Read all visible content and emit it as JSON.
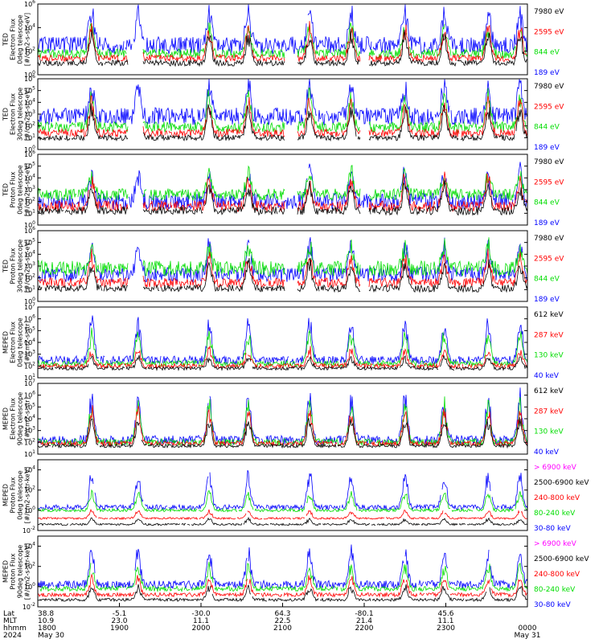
{
  "chart_data": [
    {
      "type": "line",
      "ylabel": [
        "TED",
        "Electron Flux",
        "0deg telescope",
        "[#/cm2-s-str-eV]"
      ],
      "yscale": "log",
      "ylim": [
        1,
        1000000
      ],
      "yticks": [
        {
          "exp": "0"
        },
        {
          "exp": "2"
        },
        {
          "exp": "4"
        },
        {
          "exp": "6"
        }
      ],
      "legend": [
        {
          "label": "7980 eV",
          "color": "#000000"
        },
        {
          "label": "2595 eV",
          "color": "#ff0000"
        },
        {
          "label": "844 eV",
          "color": "#00dd00"
        },
        {
          "label": "189 eV",
          "color": "#0000ff"
        }
      ],
      "series": [
        {
          "color": "#0000ff",
          "base": 2.5,
          "amp": 1.5,
          "spike": 3.1,
          "seed": 11
        },
        {
          "color": "#00dd00",
          "base": 1.8,
          "amp": 0.8,
          "spike": 2.5,
          "seed": 12
        },
        {
          "color": "#ff0000",
          "base": 1.4,
          "amp": 0.6,
          "spike": 2.8,
          "seed": 13
        },
        {
          "color": "#000000",
          "base": 1.0,
          "amp": 0.5,
          "spike": 2.6,
          "seed": 14
        }
      ]
    },
    {
      "type": "line",
      "ylabel": [
        "TED",
        "Electron Flux",
        "30deg telescope",
        "[#/cm2-s-str-eV]"
      ],
      "yscale": "log",
      "ylim": [
        1,
        1000000
      ],
      "yticks": [
        {
          "exp": "0"
        },
        {
          "exp": "1"
        },
        {
          "exp": "2"
        },
        {
          "exp": "3"
        },
        {
          "exp": "4"
        },
        {
          "exp": "5"
        },
        {
          "exp": "6"
        }
      ],
      "legend": [
        {
          "label": "7980 eV",
          "color": "#000000"
        },
        {
          "label": "2595 eV",
          "color": "#ff0000"
        },
        {
          "label": "844 eV",
          "color": "#00dd00"
        },
        {
          "label": "189 eV",
          "color": "#0000ff"
        }
      ],
      "series": [
        {
          "color": "#0000ff",
          "base": 2.8,
          "amp": 1.5,
          "spike": 3.1,
          "seed": 21
        },
        {
          "color": "#00dd00",
          "base": 1.9,
          "amp": 0.9,
          "spike": 2.8,
          "seed": 22
        },
        {
          "color": "#ff0000",
          "base": 1.4,
          "amp": 0.7,
          "spike": 2.9,
          "seed": 23
        },
        {
          "color": "#000000",
          "base": 1.0,
          "amp": 0.5,
          "spike": 2.7,
          "seed": 24
        }
      ]
    },
    {
      "type": "line",
      "ylabel": [
        "TED",
        "Proton Flux",
        "0deg telescope",
        "[#/cm2-s-str-eV]"
      ],
      "yscale": "log",
      "ylim": [
        1,
        1000000
      ],
      "yticks": [
        {
          "exp": "0"
        },
        {
          "exp": "1"
        },
        {
          "exp": "2"
        },
        {
          "exp": "3"
        },
        {
          "exp": "4"
        },
        {
          "exp": "5"
        },
        {
          "exp": "6"
        }
      ],
      "legend": [
        {
          "label": "7980 eV",
          "color": "#000000"
        },
        {
          "label": "2595 eV",
          "color": "#ff0000"
        },
        {
          "label": "844 eV",
          "color": "#00dd00"
        },
        {
          "label": "189 eV",
          "color": "#0000ff"
        }
      ],
      "series": [
        {
          "color": "#0000ff",
          "base": 2.0,
          "amp": 1.4,
          "spike": 2.8,
          "seed": 31
        },
        {
          "color": "#00dd00",
          "base": 2.6,
          "amp": 1.0,
          "spike": 2.0,
          "seed": 32
        },
        {
          "color": "#ff0000",
          "base": 1.6,
          "amp": 0.9,
          "spike": 2.6,
          "seed": 33
        },
        {
          "color": "#000000",
          "base": 1.2,
          "amp": 0.7,
          "spike": 2.4,
          "seed": 34
        }
      ]
    },
    {
      "type": "line",
      "ylabel": [
        "TED",
        "Proton Flux",
        "30deg telescope",
        "[#/cm2-s-str-eV]"
      ],
      "yscale": "log",
      "ylim": [
        1,
        1000000
      ],
      "yticks": [
        {
          "exp": "0"
        },
        {
          "exp": "1"
        },
        {
          "exp": "2"
        },
        {
          "exp": "3"
        },
        {
          "exp": "4"
        },
        {
          "exp": "5"
        },
        {
          "exp": "6"
        }
      ],
      "legend": [
        {
          "label": "7980 eV",
          "color": "#000000"
        },
        {
          "label": "2595 eV",
          "color": "#ff0000"
        },
        {
          "label": "844 eV",
          "color": "#00dd00"
        },
        {
          "label": "189 eV",
          "color": "#0000ff"
        }
      ],
      "series": [
        {
          "color": "#0000ff",
          "base": 2.3,
          "amp": 1.3,
          "spike": 2.8,
          "seed": 41
        },
        {
          "color": "#00dd00",
          "base": 2.8,
          "amp": 1.3,
          "spike": 2.0,
          "seed": 42
        },
        {
          "color": "#ff0000",
          "base": 1.6,
          "amp": 0.8,
          "spike": 2.5,
          "seed": 43
        },
        {
          "color": "#000000",
          "base": 1.1,
          "amp": 0.6,
          "spike": 2.3,
          "seed": 44
        }
      ]
    },
    {
      "type": "line",
      "ylabel": [
        "MEPED",
        "Electron Flux",
        "0deg telescope",
        "[#/cm2-s-str]"
      ],
      "yscale": "log",
      "ylim": [
        10,
        10000000
      ],
      "yticks": [
        {
          "exp": "1"
        },
        {
          "exp": "2"
        },
        {
          "exp": "3"
        },
        {
          "exp": "4"
        },
        {
          "exp": "5"
        },
        {
          "exp": "6"
        },
        {
          "exp": "7"
        }
      ],
      "legend": [
        {
          "label": "612 keV",
          "color": "#000000"
        },
        {
          "label": "287 keV",
          "color": "#ff0000"
        },
        {
          "label": "130 keV",
          "color": "#00dd00"
        },
        {
          "label": "40 keV",
          "color": "#0000ff"
        }
      ],
      "series": [
        {
          "color": "#0000ff",
          "base": 2.5,
          "amp": 0.7,
          "spike": 3.5,
          "seed": 51
        },
        {
          "color": "#00dd00",
          "base": 2.2,
          "amp": 0.5,
          "spike": 2.8,
          "seed": 52
        },
        {
          "color": "#ff0000",
          "base": 2.0,
          "amp": 0.4,
          "spike": 1.5,
          "seed": 53
        },
        {
          "color": "#000000",
          "base": 1.8,
          "amp": 0.3,
          "spike": 1.0,
          "seed": 54
        }
      ]
    },
    {
      "type": "line",
      "ylabel": [
        "MEPED",
        "Electron Flux",
        "90deg telescope",
        "[#/cm2-s-str]"
      ],
      "yscale": "log",
      "ylim": [
        10,
        10000000
      ],
      "yticks": [
        {
          "exp": "1"
        },
        {
          "exp": "2"
        },
        {
          "exp": "3"
        },
        {
          "exp": "4"
        },
        {
          "exp": "5"
        },
        {
          "exp": "6"
        },
        {
          "exp": "7"
        }
      ],
      "legend": [
        {
          "label": "612 keV",
          "color": "#000000"
        },
        {
          "label": "287 keV",
          "color": "#ff0000"
        },
        {
          "label": "130 keV",
          "color": "#00dd00"
        },
        {
          "label": "40 keV",
          "color": "#0000ff"
        }
      ],
      "series": [
        {
          "color": "#0000ff",
          "base": 2.2,
          "amp": 0.8,
          "spike": 3.8,
          "seed": 61
        },
        {
          "color": "#00dd00",
          "base": 2.0,
          "amp": 0.6,
          "spike": 3.4,
          "seed": 62
        },
        {
          "color": "#ff0000",
          "base": 1.9,
          "amp": 0.4,
          "spike": 3.0,
          "seed": 63
        },
        {
          "color": "#000000",
          "base": 1.7,
          "amp": 0.3,
          "spike": 2.4,
          "seed": 64
        }
      ]
    },
    {
      "type": "line",
      "ylabel": [
        "MEPED",
        "Proton Flux",
        "0deg telescope",
        "[#/cm2-s-str-keV]"
      ],
      "yscale": "log",
      "ylim": [
        0.01,
        100000
      ],
      "yticks": [
        {
          "exp": "-2"
        },
        {
          "exp": "0"
        },
        {
          "exp": "2"
        },
        {
          "exp": "4"
        }
      ],
      "legend": [
        {
          "label": "> 6900 keV",
          "color": "#ff00ff"
        },
        {
          "label": "2500-6900 keV",
          "color": "#000000"
        },
        {
          "label": "240-800 keV",
          "color": "#ff0000"
        },
        {
          "label": "80-240 keV",
          "color": "#00dd00"
        },
        {
          "label": "30-80 keV",
          "color": "#0000ff"
        }
      ],
      "series": [
        {
          "color": "#0000ff",
          "base": 0.3,
          "amp": 0.5,
          "spike": 3.6,
          "seed": 71
        },
        {
          "color": "#00dd00",
          "base": 0.0,
          "amp": 0.3,
          "spike": 1.8,
          "seed": 72
        },
        {
          "color": "#ff0000",
          "base": -0.8,
          "amp": 0.2,
          "spike": 0.8,
          "seed": 73
        },
        {
          "color": "#000000",
          "base": -1.4,
          "amp": 0.2,
          "spike": 0.6,
          "seed": 74
        }
      ]
    },
    {
      "type": "line",
      "ylabel": [
        "MEPED",
        "Proton Flux",
        "90deg telescope",
        "[#/cm2-s-str-keV]"
      ],
      "yscale": "log",
      "ylim": [
        0.01,
        100000
      ],
      "yticks": [
        {
          "exp": "-2"
        },
        {
          "exp": "0"
        },
        {
          "exp": "2"
        },
        {
          "exp": "4"
        }
      ],
      "legend": [
        {
          "label": "> 6900 keV",
          "color": "#ff00ff"
        },
        {
          "label": "2500-6900 keV",
          "color": "#000000"
        },
        {
          "label": "240-800 keV",
          "color": "#ff0000"
        },
        {
          "label": "80-240 keV",
          "color": "#00dd00"
        },
        {
          "label": "30-80 keV",
          "color": "#0000ff"
        }
      ],
      "series": [
        {
          "color": "#0000ff",
          "base": 0.2,
          "amp": 0.8,
          "spike": 3.6,
          "seed": 81
        },
        {
          "color": "#00dd00",
          "base": -0.2,
          "amp": 0.5,
          "spike": 2.4,
          "seed": 82
        },
        {
          "color": "#ff0000",
          "base": -0.8,
          "amp": 0.4,
          "spike": 1.8,
          "seed": 83
        },
        {
          "color": "#000000",
          "base": -1.3,
          "amp": 0.3,
          "spike": 1.4,
          "seed": 84
        }
      ]
    }
  ],
  "xaxis": {
    "row_labels": [
      "Lat",
      "MLT",
      "hhmm",
      "2024"
    ],
    "ticks": [
      {
        "lat": "38.8",
        "mlt": "10.9",
        "hhmm": "1800",
        "date": "May 30"
      },
      {
        "lat": "-5.1",
        "mlt": "23.0",
        "hhmm": "1900",
        "date": ""
      },
      {
        "lat": "-30.0",
        "mlt": "11.1",
        "hhmm": "2000",
        "date": ""
      },
      {
        "lat": "64.3",
        "mlt": "22.5",
        "hhmm": "2100",
        "date": ""
      },
      {
        "lat": "-80.1",
        "mlt": "21.4",
        "hhmm": "2200",
        "date": ""
      },
      {
        "lat": "45.6",
        "mlt": "11.1",
        "hhmm": "2300",
        "date": ""
      },
      {
        "lat": "",
        "mlt": "",
        "hhmm": "0000",
        "date": "May 31"
      }
    ]
  },
  "style": {
    "background": "#ffffff",
    "axis": "#000000"
  }
}
